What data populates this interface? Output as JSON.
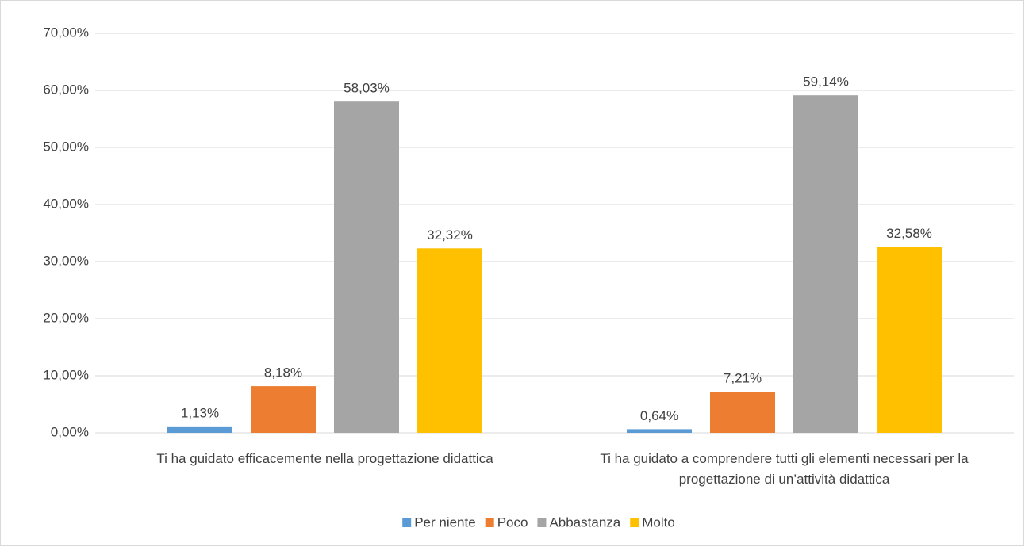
{
  "chart_data": {
    "type": "bar",
    "categories": [
      "Ti ha guidato efficacemente nella progettazione didattica",
      "Ti ha guidato a comprendere tutti gli elementi necessari per la progettazione di un’attività didattica"
    ],
    "series": [
      {
        "name": "Per niente",
        "color": "#5b9bd5",
        "values": [
          1.13,
          0.64
        ],
        "value_labels": [
          "1,13%",
          "0,64%"
        ]
      },
      {
        "name": "Poco",
        "color": "#ed7d31",
        "values": [
          8.18,
          7.21
        ],
        "value_labels": [
          "8,18%",
          "7,21%"
        ]
      },
      {
        "name": "Abbastanza",
        "color": "#a5a5a5",
        "values": [
          58.03,
          59.14
        ],
        "value_labels": [
          "58,03%",
          "59,14%"
        ]
      },
      {
        "name": "Molto",
        "color": "#ffc000",
        "values": [
          32.32,
          32.58
        ],
        "value_labels": [
          "32,32%",
          "32,58%"
        ]
      }
    ],
    "ylim": [
      0,
      70
    ],
    "yticks": [
      {
        "value": 0,
        "label": "0,00%"
      },
      {
        "value": 10,
        "label": "10,00%"
      },
      {
        "value": 20,
        "label": "20,00%"
      },
      {
        "value": 30,
        "label": "30,00%"
      },
      {
        "value": 40,
        "label": "40,00%"
      },
      {
        "value": 50,
        "label": "50,00%"
      },
      {
        "value": 60,
        "label": "60,00%"
      },
      {
        "value": 70,
        "label": "70,00%"
      }
    ],
    "grid": true,
    "legend": "bottom"
  }
}
